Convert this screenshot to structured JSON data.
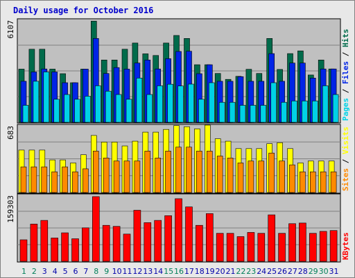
{
  "title": "Daily usage for October 2016",
  "colors": {
    "background": "#c0c0c0",
    "title": "#0000cc",
    "hits": "#006b4b",
    "files": "#0024e6",
    "pages": "#00d2e6",
    "visits": "#ffff00",
    "sites": "#ff8a00",
    "kbytes": "#ff0000",
    "weekday_label": "#0000aa",
    "weekend_label": "#00805a"
  },
  "chart_data": [
    {
      "type": "bar",
      "panel": "top",
      "ymax_label": "6107",
      "ylim": [
        0,
        6107
      ],
      "right_labels": [
        "Pages",
        "Files",
        "Hits"
      ],
      "categories": [
        "1",
        "2",
        "3",
        "4",
        "5",
        "6",
        "7",
        "8",
        "9",
        "10",
        "11",
        "12",
        "13",
        "14",
        "15",
        "16",
        "17",
        "18",
        "19",
        "20",
        "21",
        "22",
        "23",
        "24",
        "25",
        "26",
        "27",
        "28",
        "29",
        "30",
        "31"
      ],
      "series": [
        {
          "name": "Hits",
          "values": [
            3160,
            4340,
            4340,
            3160,
            2890,
            2350,
            3160,
            6010,
            3700,
            3700,
            4340,
            4710,
            4070,
            3970,
            4710,
            5160,
            4980,
            3420,
            3420,
            2900,
            2550,
            2730,
            3150,
            2900,
            4980,
            3140,
            4080,
            4240,
            2810,
            3700,
            3170
          ]
        },
        {
          "name": "Files",
          "values": [
            2440,
            2990,
            3170,
            2990,
            2350,
            2350,
            3160,
            4980,
            2900,
            3250,
            3160,
            3520,
            3700,
            3170,
            3780,
            4210,
            4220,
            2890,
            3420,
            2440,
            2440,
            2710,
            2440,
            2440,
            4080,
            2440,
            3520,
            3520,
            2630,
            3170,
            3170
          ]
        },
        {
          "name": "Pages",
          "values": [
            1010,
            2440,
            2990,
            1370,
            1650,
            1370,
            1550,
            2170,
            1850,
            1650,
            1370,
            2630,
            1650,
            2170,
            2260,
            2160,
            2270,
            1370,
            2350,
            1190,
            1190,
            1010,
            1010,
            1010,
            2350,
            1190,
            1270,
            1270,
            1270,
            2170,
            1650
          ]
        }
      ]
    },
    {
      "type": "bar",
      "panel": "middle",
      "ymax_label": "683",
      "ylim": [
        0,
        683
      ],
      "right_labels": [
        "Sites",
        "Visits"
      ],
      "categories": [
        "1",
        "2",
        "3",
        "4",
        "5",
        "6",
        "7",
        "8",
        "9",
        "10",
        "11",
        "12",
        "13",
        "14",
        "15",
        "16",
        "17",
        "18",
        "19",
        "20",
        "21",
        "22",
        "23",
        "24",
        "25",
        "26",
        "27",
        "28",
        "29",
        "30",
        "31"
      ],
      "series": [
        {
          "name": "Visits",
          "values": [
            430,
            430,
            430,
            330,
            330,
            300,
            383,
            578,
            511,
            511,
            472,
            520,
            612,
            612,
            639,
            678,
            667,
            645,
            683,
            545,
            520,
            445,
            445,
            445,
            495,
            505,
            445,
            300,
            320,
            320,
            320
          ]
        },
        {
          "name": "Sites",
          "values": [
            260,
            260,
            260,
            210,
            260,
            210,
            240,
            420,
            350,
            320,
            320,
            320,
            420,
            350,
            420,
            460,
            460,
            420,
            420,
            370,
            350,
            300,
            320,
            320,
            400,
            320,
            280,
            210,
            210,
            210,
            210
          ]
        }
      ]
    },
    {
      "type": "bar",
      "panel": "bottom",
      "ymax_label": "159303",
      "ylim": [
        0,
        159303
      ],
      "right_labels": [
        "KBytes"
      ],
      "categories": [
        "1",
        "2",
        "3",
        "4",
        "5",
        "6",
        "7",
        "8",
        "9",
        "10",
        "11",
        "12",
        "13",
        "14",
        "15",
        "16",
        "17",
        "18",
        "19",
        "20",
        "21",
        "22",
        "23",
        "24",
        "25",
        "26",
        "27",
        "28",
        "29",
        "30",
        "31"
      ],
      "series": [
        {
          "name": "KBytes",
          "values": [
            51500,
            89000,
            97700,
            55700,
            68000,
            54000,
            80000,
            154500,
            85900,
            83500,
            65000,
            122000,
            92500,
            97700,
            109000,
            149500,
            130000,
            85900,
            114000,
            66800,
            66800,
            59000,
            69000,
            66800,
            111000,
            66800,
            90000,
            91500,
            66800,
            71500,
            73500
          ]
        }
      ]
    }
  ],
  "weekend_days": [
    "1",
    "2",
    "8",
    "9",
    "15",
    "16",
    "22",
    "23",
    "29",
    "30"
  ]
}
